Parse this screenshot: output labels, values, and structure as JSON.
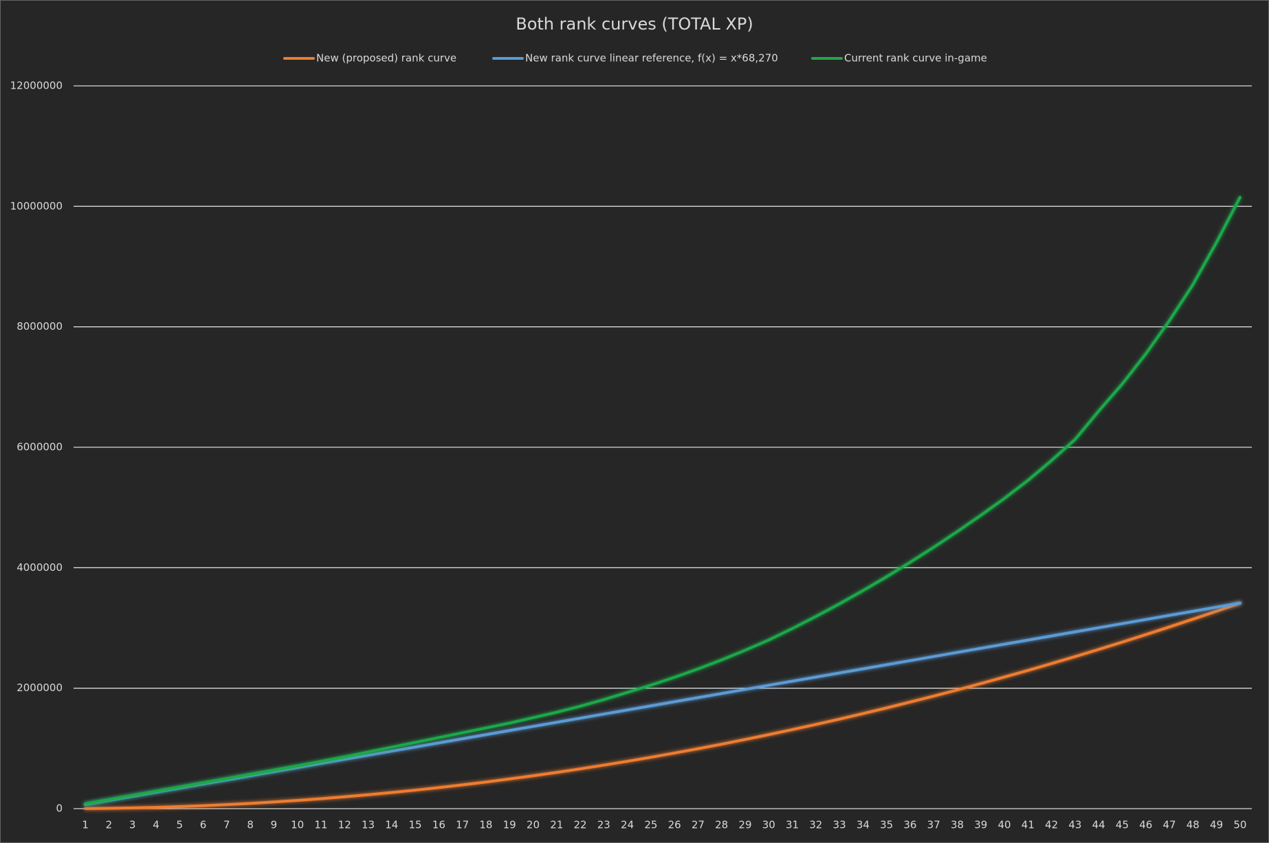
{
  "chart_data": {
    "type": "line",
    "title": "Both rank curves (TOTAL XP)",
    "categories": [
      "1",
      "2",
      "3",
      "4",
      "5",
      "6",
      "7",
      "8",
      "9",
      "10",
      "11",
      "12",
      "13",
      "14",
      "15",
      "16",
      "17",
      "18",
      "19",
      "20",
      "21",
      "22",
      "23",
      "24",
      "25",
      "26",
      "27",
      "28",
      "29",
      "30",
      "31",
      "32",
      "33",
      "34",
      "35",
      "36",
      "37",
      "38",
      "39",
      "40",
      "41",
      "42",
      "43",
      "44",
      "45",
      "46",
      "47",
      "48",
      "49",
      "50"
    ],
    "series": [
      {
        "name": "New (proposed) rank curve",
        "color": "#ed7d31",
        "values": [
          1365,
          5462,
          12289,
          21846,
          34135,
          49154,
          66905,
          87386,
          110597,
          136540,
          165213,
          196618,
          230753,
          267618,
          307215,
          349542,
          394601,
          442390,
          492909,
          546160,
          602141,
          660854,
          722297,
          786470,
          853375,
          923010,
          995377,
          1070474,
          1148301,
          1228860,
          1312149,
          1398170,
          1486921,
          1578402,
          1672615,
          1769558,
          1869233,
          1971638,
          2076773,
          2184640,
          2295237,
          2408566,
          2524625,
          2643414,
          2764935,
          2889186,
          3016169,
          3145882,
          3278325,
          3413500
        ]
      },
      {
        "name": "New rank curve linear reference, f(x) = x*68,270",
        "color": "#5b9bd5",
        "values": [
          68270,
          136540,
          204810,
          273080,
          341350,
          409620,
          477890,
          546160,
          614430,
          682700,
          750970,
          819240,
          887510,
          955780,
          1024050,
          1092320,
          1160590,
          1228860,
          1297130,
          1365400,
          1433670,
          1501940,
          1570210,
          1638480,
          1706750,
          1775020,
          1843290,
          1911560,
          1979830,
          2048100,
          2116370,
          2184640,
          2252910,
          2321180,
          2389450,
          2457720,
          2525990,
          2594260,
          2662530,
          2730800,
          2799070,
          2867340,
          2935610,
          3003880,
          3072150,
          3140420,
          3208690,
          3276960,
          3345230,
          3413500
        ]
      },
      {
        "name": "Current rank curve in-game",
        "color": "#1fa84a",
        "values": [
          80000,
          150000,
          220000,
          290000,
          360000,
          430000,
          500000,
          570000,
          640000,
          710000,
          785000,
          860000,
          940000,
          1020000,
          1100000,
          1180000,
          1260000,
          1340000,
          1420000,
          1510000,
          1600000,
          1700000,
          1810000,
          1930000,
          2050000,
          2180000,
          2320000,
          2470000,
          2630000,
          2800000,
          2990000,
          3190000,
          3400000,
          3620000,
          3850000,
          4090000,
          4340000,
          4600000,
          4870000,
          5150000,
          5450000,
          5780000,
          6130000,
          6600000,
          7050000,
          7550000,
          8100000,
          8700000,
          9400000,
          10150000
        ]
      }
    ],
    "ylim": [
      0,
      12000000
    ],
    "yticks": [
      0,
      2000000,
      4000000,
      6000000,
      8000000,
      10000000,
      12000000
    ],
    "grid": true
  }
}
